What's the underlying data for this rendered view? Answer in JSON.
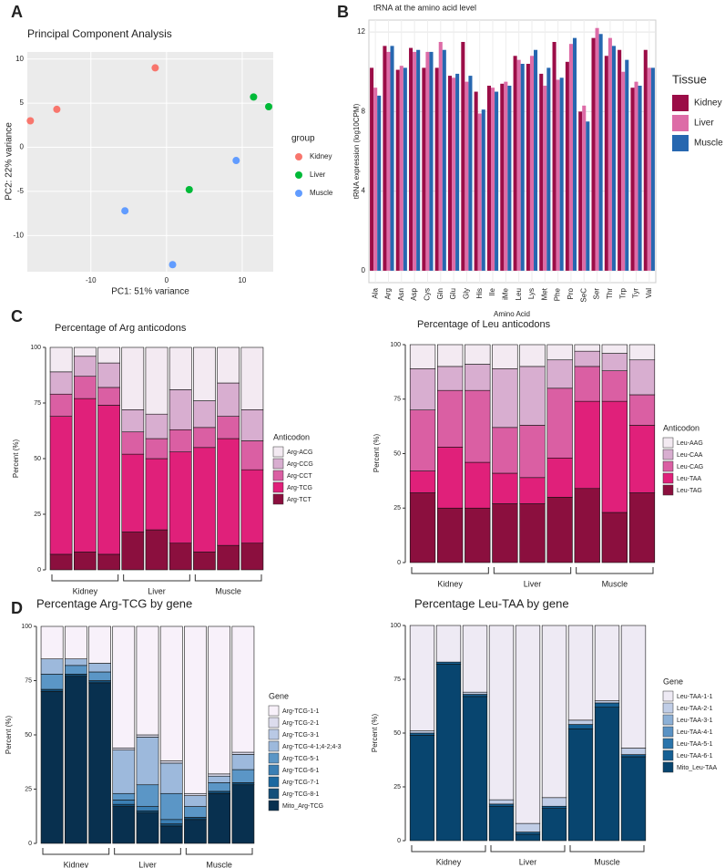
{
  "panel_labels": [
    "A",
    "B",
    "C",
    "D"
  ],
  "chart_data": [
    {
      "type": "scatter",
      "title": "Principal Component Analysis",
      "xlabel": "PC1: 51% variance",
      "ylabel": "PC2: 22% variance",
      "legend_title": "group",
      "xlim": [
        -18.4,
        14.1
      ],
      "ylim": [
        -14.1,
        10.8
      ],
      "xticks": [
        -10,
        0,
        10
      ],
      "yticks": [
        -10,
        -5,
        0,
        5,
        10
      ],
      "grid": true,
      "series": [
        {
          "name": "Kidney",
          "color": "#f8766d",
          "x": [
            -18,
            -14.5,
            -1.5
          ],
          "values": [
            3,
            4.3,
            9
          ]
        },
        {
          "name": "Liver",
          "color": "#00ba38",
          "x": [
            11.5,
            13.5,
            3
          ],
          "values": [
            5.7,
            4.6,
            -4.8
          ]
        },
        {
          "name": "Muscle",
          "color": "#619cff",
          "x": [
            -5.5,
            0.8,
            9.2
          ],
          "values": [
            -7.2,
            -13.3,
            -1.5
          ]
        }
      ]
    },
    {
      "type": "bar",
      "title": "tRNA at the amino acid level",
      "xlabel": "Amino Acid",
      "ylabel": "tRNA expression (log10CPM)",
      "legend_title": "Tissue",
      "ylim": [
        -0.6,
        12.6
      ],
      "yticks": [
        0,
        4,
        8,
        12
      ],
      "grid": true,
      "categories": [
        "Ala",
        "Arg",
        "Asn",
        "Asp",
        "Cys",
        "Gln",
        "Glu",
        "Gly",
        "His",
        "Ile",
        "iMe",
        "Leu",
        "Lys",
        "Met",
        "Phe",
        "Pro",
        "SeC",
        "Ser",
        "Thr",
        "Trp",
        "Tyr",
        "Val"
      ],
      "series": [
        {
          "name": "Kidney",
          "color": "#9b0d47",
          "values": [
            10.2,
            11.3,
            10.1,
            11.2,
            10.2,
            10.2,
            9.8,
            11.5,
            9.0,
            9.3,
            9.4,
            10.8,
            10.4,
            9.9,
            11.5,
            10.5,
            8.0,
            11.7,
            10.8,
            11.1,
            9.2,
            11.1
          ]
        },
        {
          "name": "Liver",
          "color": "#dd6ca7",
          "values": [
            9.2,
            11.0,
            10.3,
            11.0,
            11.0,
            11.5,
            9.7,
            9.5,
            7.9,
            9.2,
            9.5,
            10.6,
            10.8,
            9.3,
            9.6,
            11.4,
            8.3,
            12.2,
            11.7,
            10.0,
            9.5,
            10.2
          ]
        },
        {
          "name": "Muscle",
          "color": "#2767b0",
          "values": [
            8.8,
            11.3,
            10.2,
            11.1,
            11.0,
            11.1,
            9.9,
            9.8,
            8.1,
            9.0,
            9.3,
            10.4,
            11.1,
            10.2,
            9.7,
            11.7,
            7.5,
            11.9,
            11.3,
            10.6,
            9.3,
            10.2
          ]
        }
      ]
    },
    {
      "type": "stacked_bar",
      "title": "Percentage of Arg anticodons",
      "ylabel": "Percent (%)",
      "legend_title": "Anticodon",
      "ylim": [
        0,
        100
      ],
      "yticks": [
        0,
        25,
        50,
        75,
        100
      ],
      "groups": [
        "Kidney",
        "Liver",
        "Muscle"
      ],
      "categories": [
        null,
        null,
        null,
        null,
        null,
        null,
        null,
        null,
        null
      ],
      "series": [
        {
          "name": "Arg-TCT",
          "color": "#8b0f3e",
          "values": [
            7,
            8,
            7,
            17,
            18,
            12,
            8,
            11,
            12
          ]
        },
        {
          "name": "Arg-TCG",
          "color": "#e0207a",
          "values": [
            62,
            69,
            67,
            35,
            32,
            41,
            47,
            48,
            33
          ]
        },
        {
          "name": "Arg-CCT",
          "color": "#da5fa3",
          "values": [
            10,
            10,
            8,
            10,
            9,
            10,
            9,
            10,
            13
          ]
        },
        {
          "name": "Arg-CCG",
          "color": "#d8aed0",
          "values": [
            10,
            9,
            11,
            10,
            11,
            18,
            12,
            15,
            14
          ]
        },
        {
          "name": "Arg-ACG",
          "color": "#f3eaf2",
          "values": [
            11,
            4,
            7,
            28,
            30,
            19,
            24,
            16,
            28
          ]
        }
      ]
    },
    {
      "type": "stacked_bar",
      "title": "Percentage of Leu anticodons",
      "ylabel": "Percent (%)",
      "legend_title": "Anticodon",
      "ylim": [
        0,
        100
      ],
      "yticks": [
        0,
        25,
        50,
        75,
        100
      ],
      "groups": [
        "Kidney",
        "Liver",
        "Muscle"
      ],
      "categories": [
        null,
        null,
        null,
        null,
        null,
        null,
        null,
        null,
        null
      ],
      "series": [
        {
          "name": "Leu-TAG",
          "color": "#8b0f3e",
          "values": [
            32,
            25,
            25,
            27,
            27,
            30,
            34,
            23,
            32
          ]
        },
        {
          "name": "Leu-TAA",
          "color": "#e0207a",
          "values": [
            10,
            28,
            21,
            14,
            12,
            18,
            40,
            51,
            31
          ]
        },
        {
          "name": "Leu-CAG",
          "color": "#da5fa3",
          "values": [
            28,
            26,
            33,
            21,
            24,
            32,
            16,
            14,
            14
          ]
        },
        {
          "name": "Leu-CAA",
          "color": "#d8aed0",
          "values": [
            19,
            11,
            12,
            27,
            27,
            13,
            7,
            8,
            16
          ]
        },
        {
          "name": "Leu-AAG",
          "color": "#f3eaf2",
          "values": [
            11,
            10,
            9,
            11,
            10,
            7,
            3,
            4,
            7
          ]
        }
      ]
    },
    {
      "type": "stacked_bar",
      "title": "Percentage Arg-TCG by gene",
      "ylabel": "Percent (%)",
      "legend_title": "Gene",
      "ylim": [
        0,
        100
      ],
      "yticks": [
        0,
        25,
        50,
        75,
        100
      ],
      "groups": [
        "Kidney",
        "Liver",
        "Muscle"
      ],
      "categories": [
        null,
        null,
        null,
        null,
        null,
        null,
        null,
        null,
        null
      ],
      "series": [
        {
          "name": "Mito_Arg-TCG",
          "color": "#08304f",
          "values": [
            70,
            77,
            74,
            17,
            14,
            8,
            11,
            23,
            27
          ]
        },
        {
          "name": "Arg-TCG-8-1",
          "color": "#134f7a",
          "values": [
            1,
            1,
            1,
            1,
            1,
            1,
            1,
            1,
            1
          ]
        },
        {
          "name": "Arg-TCG-7-1",
          "color": "#1b68a0",
          "values": [
            0,
            0,
            0,
            0,
            0,
            0,
            0,
            0,
            0
          ]
        },
        {
          "name": "Arg-TCG-6-1",
          "color": "#3b7fb4",
          "values": [
            0,
            0,
            0,
            2,
            2,
            2,
            0,
            0,
            0
          ]
        },
        {
          "name": "Arg-TCG-5-1",
          "color": "#5b96c6",
          "values": [
            7,
            4,
            4,
            3,
            10,
            12,
            5,
            4,
            6
          ]
        },
        {
          "name": "Arg-TCG-4-1;4-2;4-3",
          "color": "#9db9dc",
          "values": [
            7,
            3,
            4,
            20,
            22,
            14,
            5,
            3,
            7
          ]
        },
        {
          "name": "Arg-TCG-3-1",
          "color": "#b9c9e5",
          "values": [
            0,
            0,
            0,
            0,
            0,
            0,
            0,
            0,
            0
          ]
        },
        {
          "name": "Arg-TCG-2-1",
          "color": "#dcdced",
          "values": [
            0,
            0,
            0,
            1,
            1,
            1,
            1,
            1,
            1
          ]
        },
        {
          "name": "Arg-TCG-1-1",
          "color": "#f8f1fa",
          "values": [
            15,
            15,
            17,
            56,
            50,
            62,
            77,
            68,
            58
          ]
        }
      ]
    },
    {
      "type": "stacked_bar",
      "title": "Percentage Leu-TAA by gene",
      "ylabel": "Percent (%)",
      "legend_title": "Gene",
      "ylim": [
        0,
        100
      ],
      "yticks": [
        0,
        25,
        50,
        75,
        100
      ],
      "groups": [
        "Kidney",
        "Liver",
        "Muscle"
      ],
      "categories": [
        null,
        null,
        null,
        null,
        null,
        null,
        null,
        null,
        null
      ],
      "series": [
        {
          "name": "Mito_Leu-TAA",
          "color": "#08456f",
          "values": [
            49,
            82,
            67,
            16,
            3,
            15,
            52,
            62,
            39
          ]
        },
        {
          "name": "Leu-TAA-6-1",
          "color": "#145f93",
          "values": [
            1,
            1,
            1,
            1,
            1,
            1,
            2,
            2,
            1
          ]
        },
        {
          "name": "Leu-TAA-5-1",
          "color": "#2a74ab",
          "values": [
            0,
            0,
            0,
            0,
            0,
            0,
            0,
            0,
            0
          ]
        },
        {
          "name": "Leu-TAA-4-1",
          "color": "#5a92c4",
          "values": [
            0,
            0,
            0,
            0,
            0,
            0,
            0,
            0,
            0
          ]
        },
        {
          "name": "Leu-TAA-3-1",
          "color": "#8cb0d6",
          "values": [
            0,
            0,
            0,
            0,
            0,
            0,
            0,
            0,
            0
          ]
        },
        {
          "name": "Leu-TAA-2-1",
          "color": "#c0cde6",
          "values": [
            1,
            0,
            1,
            2,
            4,
            4,
            2,
            1,
            3
          ]
        },
        {
          "name": "Leu-TAA-1-1",
          "color": "#eeeaf4",
          "values": [
            49,
            17,
            31,
            81,
            92,
            80,
            44,
            35,
            57
          ]
        }
      ]
    }
  ]
}
